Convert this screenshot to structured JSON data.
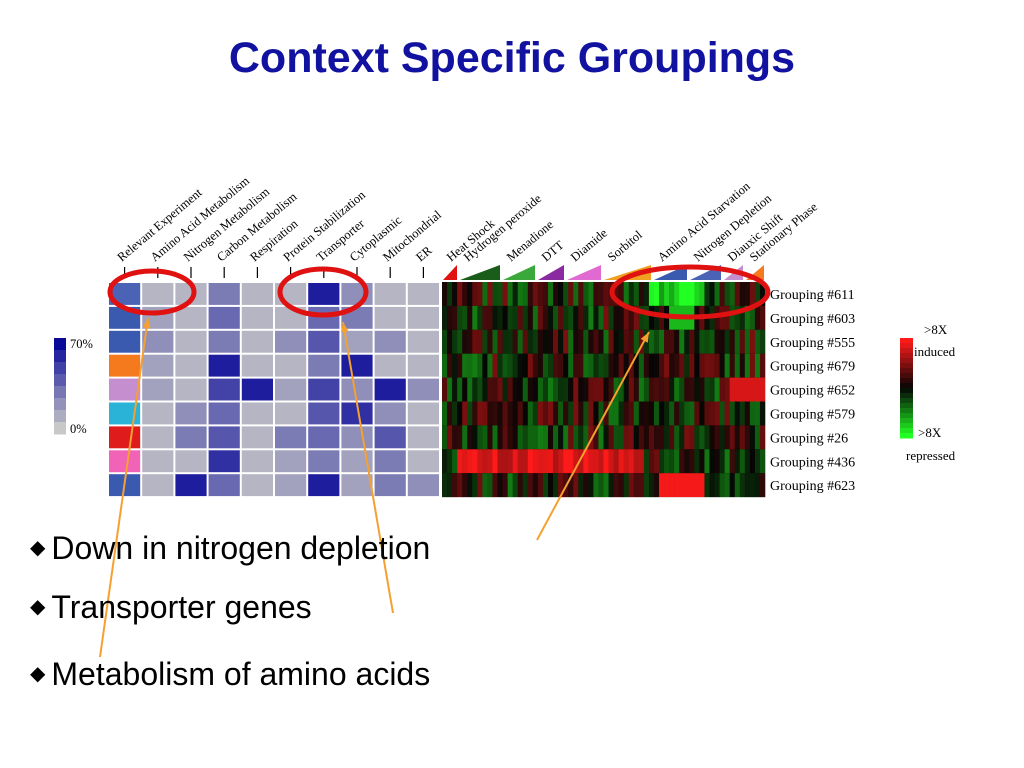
{
  "title": "Context Specific Groupings",
  "bullets": [
    {
      "text": "Down in nitrogen depletion"
    },
    {
      "text": "Transporter genes"
    },
    {
      "text": "Metabolism of amino acids"
    }
  ],
  "chart_data": {
    "type": "heatmap",
    "columns_annotation": [
      "Relevant Experiment",
      "Amino Acid Metabolism",
      "Nitrogen Metabolism",
      "Carbon Metabolism",
      "Respiration",
      "Protein Stabilization",
      "Transporter",
      "Cytoplasmic",
      "Mitochondrial",
      "ER"
    ],
    "columns_conditions": [
      "Heat Shock",
      "Hydrogen peroxide",
      "Menadione",
      "DTT",
      "Diamide",
      "Sorbitol",
      "Amino Acid Starvation",
      "Nitrogen Depletion",
      "Diauxic Shift",
      "Stationary Phase"
    ],
    "rows": [
      "Grouping #611",
      "Grouping #603",
      "Grouping #555",
      "Grouping #679",
      "Grouping #652",
      "Grouping #579",
      "Grouping #26",
      "Grouping #436",
      "Grouping #623"
    ],
    "relevant_experiment_colors": [
      "#4a63b5",
      "#3a5ab0",
      "#3a5ab0",
      "#f57a1e",
      "#c58fcf",
      "#2ab3d6",
      "#e01b1b",
      "#f063b7",
      "#3a5ab0"
    ],
    "annotation_levels": [
      [
        0.5,
        0.1,
        0.1,
        0.4,
        0.1,
        0.1,
        0.9,
        0.3,
        0.1,
        0.1
      ],
      [
        0.1,
        0.2,
        0.1,
        0.5,
        0.1,
        0.1,
        0.5,
        0.4,
        0.1,
        0.1
      ],
      [
        0.1,
        0.3,
        0.1,
        0.4,
        0.1,
        0.3,
        0.6,
        0.2,
        0.3,
        0.1
      ],
      [
        0.1,
        0.2,
        0.1,
        0.9,
        0.1,
        0.1,
        0.4,
        0.9,
        0.1,
        0.1
      ],
      [
        0.3,
        0.2,
        0.1,
        0.7,
        0.9,
        0.2,
        0.7,
        0.3,
        0.9,
        0.3
      ],
      [
        0.9,
        0.1,
        0.3,
        0.5,
        0.1,
        0.1,
        0.6,
        0.8,
        0.3,
        0.1
      ],
      [
        0.5,
        0.1,
        0.4,
        0.6,
        0.1,
        0.4,
        0.5,
        0.3,
        0.6,
        0.1
      ],
      [
        0.2,
        0.1,
        0.1,
        0.8,
        0.1,
        0.2,
        0.4,
        0.2,
        0.4,
        0.1
      ],
      [
        0.3,
        0.1,
        0.9,
        0.5,
        0.1,
        0.2,
        0.9,
        0.2,
        0.4,
        0.3
      ]
    ],
    "annotation_scale": {
      "top_label": "70%",
      "bottom_label": "0%"
    },
    "expression_scale": {
      "top_label_1": ">8X",
      "top_label_2": "induced",
      "bottom_label_1": ">8X",
      "bottom_label_2": "repressed"
    },
    "colors": {
      "annotation_high": "#0a0a99",
      "annotation_low": "#c8c8c8",
      "induced": "#ff1a1a",
      "repressed": "#22ff22",
      "circle": "#e01111",
      "arrow": "#f5a030"
    }
  }
}
